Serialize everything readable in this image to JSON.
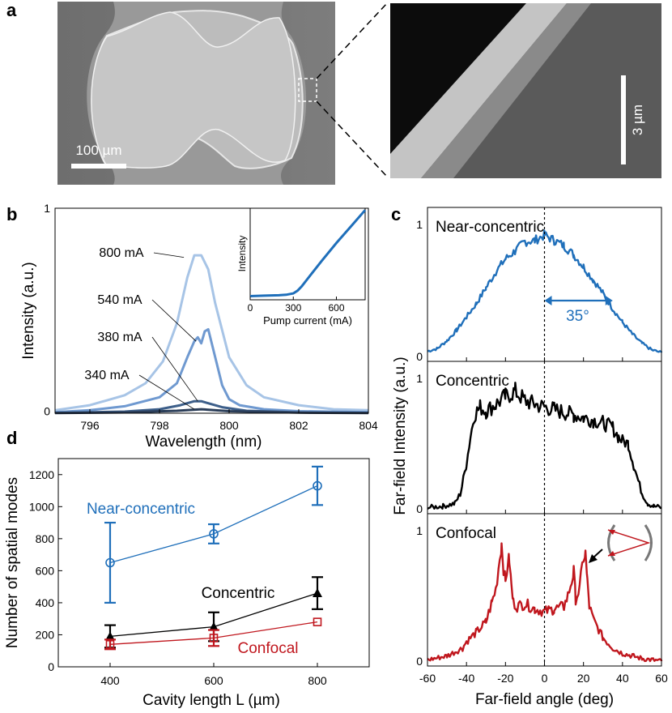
{
  "panel_a": {
    "label": "a",
    "scale_bar_left": "100 µm",
    "scale_bar_right": "3 µm"
  },
  "chart_data": [
    {
      "id": "b",
      "type": "line",
      "panel_label": "b",
      "xlabel": "Wavelength (nm)",
      "ylabel": "Intensity (a.u.)",
      "xlim": [
        795,
        804
      ],
      "ylim": [
        0,
        1
      ],
      "xticks": [
        796,
        798,
        800,
        802,
        804
      ],
      "yticks": [
        0,
        1
      ],
      "series": [
        {
          "name": "800 mA",
          "color": "#a7c4e6",
          "x": [
            795,
            796,
            797,
            797.6,
            798.1,
            798.5,
            798.8,
            799.0,
            799.2,
            799.4,
            799.6,
            800.0,
            800.5,
            801,
            802,
            803,
            804
          ],
          "y": [
            0.015,
            0.04,
            0.09,
            0.15,
            0.26,
            0.45,
            0.68,
            0.79,
            0.79,
            0.72,
            0.55,
            0.28,
            0.14,
            0.08,
            0.04,
            0.02,
            0.015
          ]
        },
        {
          "name": "540 mA",
          "color": "#6f99d0",
          "x": [
            795,
            796,
            797,
            798,
            798.5,
            798.8,
            799.0,
            799.1,
            799.2,
            799.3,
            799.4,
            799.6,
            799.8,
            800.0,
            800.3,
            801,
            802,
            804
          ],
          "y": [
            0.005,
            0.015,
            0.035,
            0.08,
            0.15,
            0.28,
            0.36,
            0.38,
            0.35,
            0.41,
            0.42,
            0.28,
            0.14,
            0.07,
            0.04,
            0.02,
            0.01,
            0.005
          ]
        },
        {
          "name": "380 mA",
          "color": "#3d5f8a",
          "x": [
            795,
            797,
            798,
            798.6,
            799.0,
            799.2,
            799.4,
            799.8,
            800.5,
            802,
            804
          ],
          "y": [
            0.002,
            0.008,
            0.02,
            0.04,
            0.06,
            0.06,
            0.05,
            0.03,
            0.012,
            0.004,
            0.002
          ]
        },
        {
          "name": "340 mA",
          "color": "#2a3d58",
          "x": [
            795,
            797,
            798.5,
            799.2,
            800,
            802,
            804
          ],
          "y": [
            0.001,
            0.004,
            0.012,
            0.02,
            0.01,
            0.003,
            0.001
          ]
        }
      ],
      "inset": {
        "type": "line",
        "xlabel": "Pump current (mA)",
        "ylabel": "Intensity",
        "xlim": [
          0,
          800
        ],
        "xticks": [
          0,
          300,
          600
        ],
        "color": "#1f6fba",
        "x": [
          0,
          100,
          200,
          250,
          300,
          330,
          360,
          400,
          500,
          600,
          700,
          800
        ],
        "y": [
          0.04,
          0.045,
          0.05,
          0.055,
          0.07,
          0.1,
          0.15,
          0.23,
          0.43,
          0.62,
          0.8,
          0.98
        ]
      }
    },
    {
      "id": "c",
      "type": "line",
      "panel_label": "c",
      "ylabel": "Far-field Intensity (a.u.)",
      "xlabel": "Far-field angle (deg)",
      "xlim": [
        -60,
        60
      ],
      "xticks": [
        -60,
        -40,
        -20,
        0,
        20,
        40,
        60
      ],
      "subplots": [
        {
          "title": "Near-concentric",
          "color": "#1f6fba",
          "yticks": [
            0,
            1
          ],
          "annotation": "35°",
          "x": [
            -60,
            -55,
            -50,
            -45,
            -40,
            -35,
            -30,
            -25,
            -20,
            -15,
            -10,
            -5,
            0,
            5,
            10,
            15,
            20,
            25,
            30,
            35,
            40,
            45,
            50,
            55,
            60
          ],
          "y": [
            0.04,
            0.06,
            0.12,
            0.2,
            0.3,
            0.4,
            0.52,
            0.64,
            0.74,
            0.8,
            0.87,
            0.88,
            0.92,
            0.88,
            0.84,
            0.77,
            0.68,
            0.58,
            0.48,
            0.36,
            0.26,
            0.17,
            0.1,
            0.05,
            0.03
          ]
        },
        {
          "title": "Concentric",
          "color": "#000000",
          "yticks": [
            0,
            1
          ],
          "x": [
            -60,
            -52,
            -46,
            -43,
            -40,
            -38,
            -36,
            -33,
            -30,
            -25,
            -20,
            -15,
            -10,
            -5,
            0,
            5,
            10,
            15,
            20,
            25,
            30,
            35,
            38,
            40,
            43,
            46,
            50,
            53,
            56,
            60
          ],
          "y": [
            0.01,
            0.02,
            0.04,
            0.12,
            0.35,
            0.55,
            0.72,
            0.78,
            0.75,
            0.8,
            0.86,
            0.9,
            0.83,
            0.8,
            0.78,
            0.76,
            0.74,
            0.72,
            0.7,
            0.68,
            0.66,
            0.62,
            0.55,
            0.52,
            0.5,
            0.32,
            0.12,
            0.04,
            0.02,
            0.01
          ]
        },
        {
          "title": "Confocal",
          "color": "#c0171e",
          "yticks": [
            0,
            1
          ],
          "x": [
            -60,
            -50,
            -42,
            -40,
            -35,
            -30,
            -27,
            -25,
            -22,
            -21,
            -20,
            -19,
            -18,
            -17,
            -16,
            -14,
            -10,
            -5,
            0,
            5,
            10,
            12,
            14,
            15,
            16,
            18,
            20,
            21,
            22,
            23,
            25,
            30,
            35,
            40,
            45,
            50,
            55,
            60
          ],
          "y": [
            0.01,
            0.04,
            0.1,
            0.15,
            0.22,
            0.3,
            0.45,
            0.55,
            0.9,
            0.72,
            0.6,
            0.73,
            0.78,
            0.58,
            0.45,
            0.42,
            0.44,
            0.4,
            0.38,
            0.4,
            0.42,
            0.5,
            0.62,
            0.68,
            0.48,
            0.55,
            0.8,
            0.82,
            0.6,
            0.42,
            0.32,
            0.18,
            0.1,
            0.06,
            0.04,
            0.02,
            0.01,
            0.0
          ]
        }
      ]
    },
    {
      "id": "d",
      "type": "scatter",
      "panel_label": "d",
      "xlabel": "Cavity length L (µm)",
      "ylabel": "Number of spatial modes",
      "xlim": [
        300,
        900
      ],
      "ylim": [
        0,
        1300
      ],
      "xticks": [
        400,
        600,
        800
      ],
      "yticks": [
        0,
        200,
        400,
        600,
        800,
        1000,
        1200
      ],
      "series": [
        {
          "name": "Near-concentric",
          "color": "#1f6fba",
          "marker": "circle",
          "x": [
            400,
            600,
            800
          ],
          "y": [
            650,
            830,
            1130
          ],
          "err": [
            250,
            60,
            120
          ]
        },
        {
          "name": "Concentric",
          "color": "#000000",
          "marker": "triangle",
          "x": [
            400,
            600,
            800
          ],
          "y": [
            190,
            250,
            460
          ],
          "err": [
            70,
            90,
            100
          ]
        },
        {
          "name": "Confocal",
          "color": "#c0171e",
          "marker": "square",
          "x": [
            400,
            600,
            800
          ],
          "y": [
            140,
            180,
            280
          ],
          "err": [
            30,
            50,
            0
          ]
        }
      ]
    }
  ]
}
